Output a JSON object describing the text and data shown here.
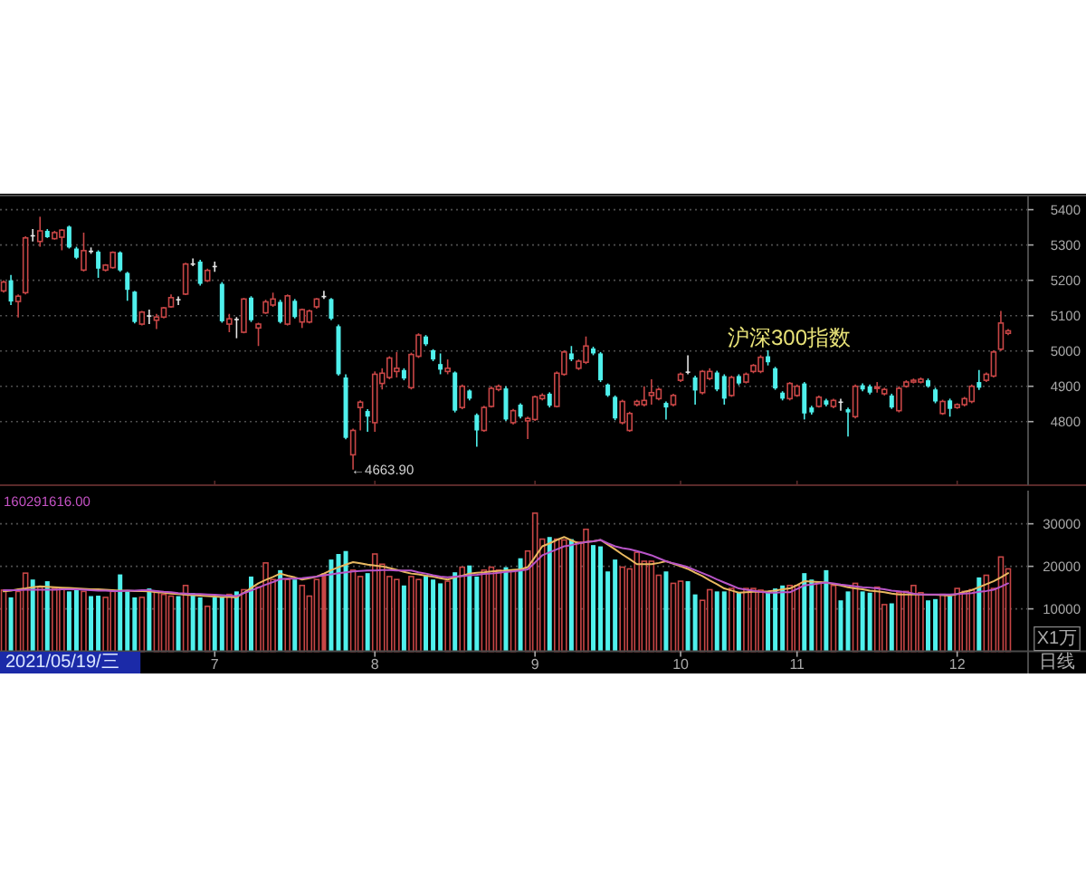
{
  "chart_data": [
    {
      "type": "candlestick",
      "title": "沪深300指数",
      "categories": [
        null,
        null,
        null,
        null,
        null,
        null,
        null,
        null,
        null,
        null,
        null,
        null,
        null,
        null,
        null,
        null,
        null,
        null,
        null,
        null,
        null,
        null,
        null,
        null,
        null,
        null,
        null,
        null,
        null,
        "7",
        null,
        null,
        null,
        null,
        null,
        null,
        null,
        null,
        null,
        null,
        null,
        null,
        null,
        null,
        null,
        null,
        null,
        null,
        null,
        null,
        null,
        "8",
        null,
        null,
        null,
        null,
        null,
        null,
        null,
        null,
        null,
        null,
        null,
        null,
        null,
        null,
        null,
        null,
        null,
        null,
        null,
        null,
        null,
        "9",
        null,
        null,
        null,
        null,
        null,
        null,
        null,
        null,
        null,
        null,
        null,
        null,
        null,
        null,
        null,
        null,
        null,
        null,
        null,
        "10",
        null,
        null,
        null,
        null,
        null,
        null,
        null,
        null,
        null,
        null,
        null,
        null,
        null,
        null,
        null,
        "11",
        null,
        null,
        null,
        null,
        null,
        null,
        null,
        null,
        null,
        null,
        null,
        null,
        null,
        null,
        null,
        null,
        null,
        null,
        null,
        null,
        null,
        "12",
        null,
        null,
        null,
        null,
        null,
        null,
        null
      ],
      "ohlc": [
        [
          5170,
          5200,
          5165,
          5195
        ],
        [
          5200,
          5215,
          5130,
          5140
        ],
        [
          5140,
          5160,
          5095,
          5155
        ],
        [
          5165,
          5325,
          5160,
          5320
        ],
        [
          5328,
          5345,
          5310,
          5328
        ],
        [
          5310,
          5380,
          5295,
          5340
        ],
        [
          5340,
          5345,
          5320,
          5322
        ],
        [
          5318,
          5340,
          5315,
          5335
        ],
        [
          5322,
          5345,
          5285,
          5342
        ],
        [
          5352,
          5355,
          5290,
          5293
        ],
        [
          5290,
          5295,
          5260,
          5264
        ],
        [
          5229,
          5335,
          5225,
          5284
        ],
        [
          5284,
          5293,
          5275,
          5284
        ],
        [
          5281,
          5285,
          5207,
          5233
        ],
        [
          5229,
          5246,
          5225,
          5243
        ],
        [
          5236,
          5282,
          5233,
          5279
        ],
        [
          5279,
          5282,
          5224,
          5228
        ],
        [
          5221,
          5224,
          5142,
          5173
        ],
        [
          5168,
          5170,
          5078,
          5082
        ],
        [
          5076,
          5113,
          5072,
          5110
        ],
        [
          5101,
          5117,
          5076,
          5101
        ],
        [
          5087,
          5105,
          5062,
          5096
        ],
        [
          5096,
          5125,
          5092,
          5122
        ],
        [
          5125,
          5160,
          5122,
          5151
        ],
        [
          5147,
          5154,
          5130,
          5147
        ],
        [
          5161,
          5250,
          5158,
          5246
        ],
        [
          5248,
          5262,
          5240,
          5248
        ],
        [
          5253,
          5258,
          5185,
          5190
        ],
        [
          5199,
          5233,
          5195,
          5228
        ],
        [
          5241,
          5253,
          5224,
          5241
        ],
        [
          5190,
          5195,
          5080,
          5084
        ],
        [
          5076,
          5105,
          5053,
          5091
        ],
        [
          5091,
          5096,
          5036,
          5091
        ],
        [
          5053,
          5150,
          5050,
          5147
        ],
        [
          5151,
          5155,
          5082,
          5087
        ],
        [
          5065,
          5080,
          5014,
          5076
        ],
        [
          5108,
          5145,
          5105,
          5139
        ],
        [
          5130,
          5165,
          5125,
          5147
        ],
        [
          5139,
          5145,
          5078,
          5082
        ],
        [
          5076,
          5160,
          5072,
          5156
        ],
        [
          5142,
          5147,
          5092,
          5096
        ],
        [
          5082,
          5120,
          5065,
          5117
        ],
        [
          5082,
          5117,
          5078,
          5113
        ],
        [
          5125,
          5150,
          5120,
          5147
        ],
        [
          5156,
          5170,
          5147,
          5156
        ],
        [
          5147,
          5150,
          5087,
          5091
        ],
        [
          5070,
          5075,
          4930,
          4934
        ],
        [
          4925,
          4934,
          4750,
          4754
        ],
        [
          4706,
          4780,
          4663.9,
          4775
        ],
        [
          4840,
          4860,
          4775,
          4855
        ],
        [
          4830,
          4835,
          4771,
          4814
        ],
        [
          4797,
          4942,
          4771,
          4934
        ],
        [
          4908,
          4951,
          4891,
          4937
        ],
        [
          4925,
          4985,
          4920,
          4980
        ],
        [
          4942,
          4997,
          4925,
          4951
        ],
        [
          4946,
          4951,
          4917,
          4922
        ],
        [
          4896,
          4995,
          4891,
          4990
        ],
        [
          4985,
          5050,
          4980,
          5045
        ],
        [
          5041,
          5045,
          5014,
          5019
        ],
        [
          5002,
          5005,
          4971,
          4976
        ],
        [
          4963,
          4993,
          4934,
          4947
        ],
        [
          4942,
          4976,
          4934,
          4951
        ],
        [
          4939,
          4942,
          4826,
          4831
        ],
        [
          4840,
          4905,
          4835,
          4900
        ],
        [
          4888,
          4891,
          4860,
          4865
        ],
        [
          4819,
          4823,
          4729,
          4775
        ],
        [
          4775,
          4845,
          4771,
          4840
        ],
        [
          4843,
          4900,
          4840,
          4894
        ],
        [
          4891,
          4905,
          4886,
          4900
        ],
        [
          4894,
          4900,
          4802,
          4806
        ],
        [
          4797,
          4836,
          4792,
          4831
        ],
        [
          4848,
          4852,
          4809,
          4814
        ],
        [
          4802,
          4814,
          4751,
          4809
        ],
        [
          4806,
          4874,
          4802,
          4870
        ],
        [
          4865,
          4880,
          4860,
          4874
        ],
        [
          4879,
          4883,
          4840,
          4845
        ],
        [
          4843,
          4942,
          4840,
          4937
        ],
        [
          4934,
          5002,
          4930,
          4997
        ],
        [
          4993,
          5014,
          4971,
          4976
        ],
        [
          4951,
          4976,
          4946,
          4971
        ],
        [
          4968,
          5041,
          4963,
          5014
        ],
        [
          5007,
          5012,
          4988,
          4993
        ],
        [
          4993,
          4997,
          4912,
          4917
        ],
        [
          4905,
          4908,
          4870,
          4874
        ],
        [
          4870,
          4874,
          4804,
          4809
        ],
        [
          4797,
          4862,
          4792,
          4857
        ],
        [
          4775,
          4828,
          4771,
          4823
        ],
        [
          4848,
          4862,
          4843,
          4857
        ],
        [
          4848,
          4900,
          4843,
          4860
        ],
        [
          4874,
          4920,
          4848,
          4882
        ],
        [
          4865,
          4896,
          4860,
          4891
        ],
        [
          4853,
          4857,
          4806,
          4840
        ],
        [
          4848,
          4879,
          4843,
          4874
        ],
        [
          4917,
          4939,
          4912,
          4934
        ],
        [
          4942,
          4988,
          4934,
          4942
        ],
        [
          4925,
          4930,
          4848,
          4888
        ],
        [
          4882,
          4946,
          4877,
          4942
        ],
        [
          4922,
          4951,
          4917,
          4942
        ],
        [
          4939,
          4944,
          4886,
          4891
        ],
        [
          4929,
          4934,
          4848,
          4865
        ],
        [
          4874,
          4930,
          4870,
          4925
        ],
        [
          4929,
          4934,
          4903,
          4908
        ],
        [
          4912,
          4939,
          4908,
          4934
        ],
        [
          4942,
          4963,
          4937,
          4959
        ],
        [
          4942,
          4988,
          4937,
          4982
        ],
        [
          4985,
          5002,
          4959,
          4968
        ],
        [
          4951,
          4955,
          4890,
          4894
        ],
        [
          4882,
          4886,
          4860,
          4865
        ],
        [
          4865,
          4912,
          4860,
          4908
        ],
        [
          4874,
          4905,
          4870,
          4900
        ],
        [
          4908,
          4912,
          4806,
          4823
        ],
        [
          4840,
          4845,
          4820,
          4826
        ],
        [
          4843,
          4874,
          4840,
          4869
        ],
        [
          4860,
          4865,
          4843,
          4848
        ],
        [
          4843,
          4865,
          4838,
          4860
        ],
        [
          4857,
          4865,
          4831,
          4857
        ],
        [
          4835,
          4840,
          4758,
          4826
        ],
        [
          4814,
          4905,
          4809,
          4900
        ],
        [
          4903,
          4908,
          4886,
          4891
        ],
        [
          4900,
          4905,
          4877,
          4882
        ],
        [
          4894,
          4912,
          4882,
          4898
        ],
        [
          4879,
          4896,
          4874,
          4891
        ],
        [
          4874,
          4879,
          4836,
          4840
        ],
        [
          4831,
          4900,
          4826,
          4894
        ],
        [
          4900,
          4917,
          4896,
          4912
        ],
        [
          4912,
          4922,
          4908,
          4917
        ],
        [
          4912,
          4925,
          4908,
          4920
        ],
        [
          4917,
          4922,
          4896,
          4900
        ],
        [
          4891,
          4896,
          4852,
          4857
        ],
        [
          4823,
          4862,
          4819,
          4857
        ],
        [
          4860,
          4865,
          4814,
          4836
        ],
        [
          4840,
          4852,
          4836,
          4848
        ],
        [
          4848,
          4870,
          4843,
          4865
        ],
        [
          4857,
          4905,
          4852,
          4900
        ],
        [
          4912,
          4946,
          4890,
          4896
        ],
        [
          4917,
          4939,
          4912,
          4934
        ],
        [
          4929,
          5002,
          4925,
          4997
        ],
        [
          5005,
          5113,
          5000,
          5079
        ],
        [
          5050,
          5062,
          5045,
          5057
        ]
      ],
      "colors": [
        "#c84646",
        "#4ff0ec",
        "#c84646",
        "#c84646",
        "#e6e6e6",
        "#c84646",
        "#4ff0ec",
        "#c84646",
        "#c84646",
        "#4ff0ec",
        "#4ff0ec",
        "#c84646",
        "#e6e6e6",
        "#4ff0ec",
        "#c84646",
        "#c84646",
        "#4ff0ec",
        "#4ff0ec",
        "#4ff0ec",
        "#c84646",
        "#e6e6e6",
        "#c84646",
        "#c84646",
        "#c84646",
        "#e6e6e6",
        "#c84646",
        "#e6e6e6",
        "#4ff0ec",
        "#c84646",
        "#e6e6e6",
        "#4ff0ec",
        "#c84646",
        "#e6e6e6",
        "#c84646",
        "#4ff0ec",
        "#c84646",
        "#c84646",
        "#c84646",
        "#4ff0ec",
        "#c84646",
        "#4ff0ec",
        "#c84646",
        "#c84646",
        "#c84646",
        "#e6e6e6",
        "#4ff0ec",
        "#4ff0ec",
        "#4ff0ec",
        "#c84646",
        "#c84646",
        "#4ff0ec",
        "#c84646",
        "#c84646",
        "#c84646",
        "#c84646",
        "#4ff0ec",
        "#c84646",
        "#c84646",
        "#4ff0ec",
        "#4ff0ec",
        "#4ff0ec",
        "#c84646",
        "#4ff0ec",
        "#c84646",
        "#4ff0ec",
        "#4ff0ec",
        "#c84646",
        "#c84646",
        "#c84646",
        "#4ff0ec",
        "#c84646",
        "#4ff0ec",
        "#c84646",
        "#c84646",
        "#c84646",
        "#4ff0ec",
        "#c84646",
        "#c84646",
        "#4ff0ec",
        "#c84646",
        "#c84646",
        "#4ff0ec",
        "#4ff0ec",
        "#4ff0ec",
        "#4ff0ec",
        "#c84646",
        "#c84646",
        "#c84646",
        "#c84646",
        "#c84646",
        "#c84646",
        "#4ff0ec",
        "#c84646",
        "#c84646",
        "#e6e6e6",
        "#4ff0ec",
        "#c84646",
        "#c84646",
        "#4ff0ec",
        "#4ff0ec",
        "#c84646",
        "#4ff0ec",
        "#c84646",
        "#c84646",
        "#c84646",
        "#4ff0ec",
        "#4ff0ec",
        "#4ff0ec",
        "#c84646",
        "#c84646",
        "#4ff0ec",
        "#4ff0ec",
        "#c84646",
        "#4ff0ec",
        "#c84646",
        "#e6e6e6",
        "#4ff0ec",
        "#c84646",
        "#4ff0ec",
        "#4ff0ec",
        "#c84646",
        "#c84646",
        "#4ff0ec",
        "#c84646",
        "#c84646",
        "#c84646",
        "#c84646",
        "#4ff0ec",
        "#4ff0ec",
        "#c84646",
        "#4ff0ec",
        "#c84646",
        "#c84646",
        "#c84646",
        "#4ff0ec",
        "#c84646",
        "#c84646",
        "#c84646",
        "#c84646"
      ],
      "ylim": [
        4620,
        5440
      ],
      "yticks": [
        4800,
        4900,
        5000,
        5100,
        5200,
        5300,
        5400
      ],
      "grid": "y",
      "tick_labels": "y",
      "annotations": [
        "←4663.90"
      ]
    },
    {
      "type": "bar",
      "ylabel": "X1万",
      "categories": [
        null,
        null,
        null,
        null,
        null,
        null,
        null,
        null,
        null,
        null,
        null,
        null,
        null,
        null,
        null,
        null,
        null,
        null,
        null,
        null,
        null,
        null,
        null,
        null,
        null,
        null,
        null,
        null,
        null,
        "7",
        null,
        null,
        null,
        null,
        null,
        null,
        null,
        null,
        null,
        null,
        null,
        null,
        null,
        null,
        null,
        null,
        null,
        null,
        null,
        null,
        null,
        "8",
        null,
        null,
        null,
        null,
        null,
        null,
        null,
        null,
        null,
        null,
        null,
        null,
        null,
        null,
        null,
        null,
        null,
        null,
        null,
        null,
        null,
        "9",
        null,
        null,
        null,
        null,
        null,
        null,
        null,
        null,
        null,
        null,
        null,
        null,
        null,
        null,
        null,
        null,
        null,
        null,
        null,
        "10",
        null,
        null,
        null,
        null,
        null,
        null,
        null,
        null,
        null,
        null,
        null,
        null,
        null,
        null,
        null,
        "11",
        null,
        null,
        null,
        null,
        null,
        null,
        null,
        null,
        null,
        null,
        null,
        null,
        null,
        null,
        null,
        null,
        null,
        null,
        null,
        null,
        null,
        "12",
        null,
        null,
        null,
        null,
        null,
        null,
        null
      ],
      "series": [
        {
          "type": "bar",
          "values": [
            14400,
            12700,
            14100,
            18400,
            16900,
            15100,
            16500,
            14800,
            14800,
            14100,
            14500,
            14100,
            13000,
            13100,
            12700,
            14100,
            18100,
            14100,
            12700,
            12700,
            14800,
            14100,
            13400,
            13000,
            13000,
            15500,
            13700,
            12700,
            10600,
            12700,
            12700,
            13400,
            14100,
            14500,
            17600,
            15100,
            20800,
            16900,
            19100,
            16900,
            16900,
            15500,
            13000,
            16900,
            18400,
            21600,
            22900,
            23600,
            19100,
            17600,
            18400,
            22900,
            20500,
            17600,
            16900,
            15500,
            17600,
            16900,
            17900,
            16900,
            16000,
            16500,
            18600,
            19800,
            20200,
            17600,
            19100,
            19800,
            19100,
            19800,
            19100,
            21900,
            23600,
            32500,
            26400,
            26900,
            26400,
            26200,
            26400,
            25700,
            28700,
            25000,
            24700,
            18800,
            21600,
            19800,
            19400,
            23300,
            21200,
            21200,
            17900,
            18800,
            16000,
            16500,
            16500,
            13400,
            12000,
            14500,
            14100,
            14100,
            14800,
            13800,
            14800,
            14800,
            14400,
            14100,
            14800,
            15500,
            15500,
            15500,
            18400,
            16900,
            16200,
            19100,
            15500,
            12000,
            14100,
            16000,
            14100,
            13800,
            15100,
            11000,
            11300,
            13800,
            14100,
            15500,
            13800,
            12000,
            12300,
            13400,
            13000,
            14800,
            14100,
            14500,
            17400,
            17900,
            14800,
            22200,
            19400
          ],
          "colors": [
            "#c84646",
            "#4ff0ec",
            "#c84646",
            "#c84646",
            "#4ff0ec",
            "#c84646",
            "#4ff0ec",
            "#c84646",
            "#c84646",
            "#4ff0ec",
            "#4ff0ec",
            "#c84646",
            "#4ff0ec",
            "#4ff0ec",
            "#c84646",
            "#c84646",
            "#4ff0ec",
            "#4ff0ec",
            "#4ff0ec",
            "#c84646",
            "#4ff0ec",
            "#c84646",
            "#c84646",
            "#c84646",
            "#4ff0ec",
            "#c84646",
            "#4ff0ec",
            "#4ff0ec",
            "#c84646",
            "#4ff0ec",
            "#4ff0ec",
            "#c84646",
            "#4ff0ec",
            "#c84646",
            "#4ff0ec",
            "#c84646",
            "#c84646",
            "#c84646",
            "#4ff0ec",
            "#c84646",
            "#4ff0ec",
            "#c84646",
            "#c84646",
            "#c84646",
            "#c84646",
            "#4ff0ec",
            "#4ff0ec",
            "#4ff0ec",
            "#c84646",
            "#c84646",
            "#4ff0ec",
            "#c84646",
            "#c84646",
            "#c84646",
            "#c84646",
            "#4ff0ec",
            "#c84646",
            "#c84646",
            "#4ff0ec",
            "#4ff0ec",
            "#4ff0ec",
            "#c84646",
            "#4ff0ec",
            "#c84646",
            "#4ff0ec",
            "#4ff0ec",
            "#c84646",
            "#c84646",
            "#c84646",
            "#4ff0ec",
            "#c84646",
            "#4ff0ec",
            "#c84646",
            "#c84646",
            "#c84646",
            "#4ff0ec",
            "#c84646",
            "#c84646",
            "#4ff0ec",
            "#c84646",
            "#c84646",
            "#4ff0ec",
            "#4ff0ec",
            "#4ff0ec",
            "#4ff0ec",
            "#c84646",
            "#c84646",
            "#c84646",
            "#c84646",
            "#c84646",
            "#c84646",
            "#4ff0ec",
            "#c84646",
            "#c84646",
            "#4ff0ec",
            "#4ff0ec",
            "#c84646",
            "#c84646",
            "#4ff0ec",
            "#4ff0ec",
            "#c84646",
            "#4ff0ec",
            "#c84646",
            "#c84646",
            "#c84646",
            "#4ff0ec",
            "#4ff0ec",
            "#4ff0ec",
            "#c84646",
            "#c84646",
            "#4ff0ec",
            "#4ff0ec",
            "#c84646",
            "#4ff0ec",
            "#c84646",
            "#4ff0ec",
            "#4ff0ec",
            "#c84646",
            "#4ff0ec",
            "#4ff0ec",
            "#c84646",
            "#c84646",
            "#4ff0ec",
            "#c84646",
            "#c84646",
            "#c84646",
            "#c84646",
            "#4ff0ec",
            "#4ff0ec",
            "#c84646",
            "#4ff0ec",
            "#c84646",
            "#c84646",
            "#c84646",
            "#4ff0ec",
            "#c84646",
            "#c84646",
            "#c84646",
            "#c84646"
          ]
        },
        {
          "type": "line",
          "color": "#e8b860",
          "values": [
            14100,
            14300,
            14600,
            14800,
            15100,
            15300,
            15200,
            15100,
            15000,
            14900,
            14800,
            14700,
            14600,
            14600,
            14500,
            14400,
            14300,
            14300,
            14200,
            14200,
            14100,
            13900,
            13800,
            13600,
            13500,
            13300,
            13200,
            13100,
            13000,
            12900,
            12800,
            12800,
            12700,
            13800,
            14900,
            16000,
            16800,
            17500,
            18300,
            17800,
            17400,
            16900,
            17200,
            17600,
            18300,
            19100,
            19800,
            20400,
            21000,
            20700,
            20400,
            20200,
            20000,
            19600,
            19200,
            18700,
            18300,
            18100,
            17800,
            17600,
            17200,
            16900,
            17400,
            17800,
            18300,
            18500,
            18600,
            18800,
            18900,
            19000,
            19200,
            19300,
            19800,
            22200,
            24700,
            25400,
            26200,
            26900,
            26100,
            25400,
            25700,
            25900,
            26200,
            25100,
            24000,
            22800,
            21700,
            20500,
            20500,
            20500,
            20800,
            21200,
            20600,
            20000,
            19400,
            18500,
            17700,
            16700,
            15800,
            14800,
            14300,
            13800,
            13900,
            14000,
            14000,
            14100,
            14300,
            14600,
            14800,
            15600,
            16500,
            16400,
            16300,
            16200,
            15800,
            15500,
            15100,
            14800,
            14600,
            14300,
            14100,
            13900,
            13600,
            13400,
            13400,
            13400,
            13400,
            13300,
            13300,
            13200,
            13100,
            13500,
            14000,
            14400,
            15100,
            15800,
            16500,
            17400,
            18400
          ]
        },
        {
          "type": "line",
          "color": "#b855c8",
          "values": [
            14400,
            14400,
            14400,
            14500,
            14500,
            14500,
            14500,
            14500,
            14600,
            14600,
            14600,
            14500,
            14400,
            14300,
            14300,
            14200,
            14200,
            14300,
            14300,
            14400,
            14400,
            14200,
            14000,
            13900,
            13700,
            13600,
            13500,
            13500,
            13400,
            13300,
            13200,
            13100,
            13000,
            13700,
            14300,
            15000,
            15700,
            16300,
            17000,
            17100,
            17100,
            17200,
            17400,
            17600,
            17900,
            18100,
            18400,
            18600,
            18800,
            18900,
            19000,
            19000,
            19100,
            19100,
            19000,
            19000,
            19000,
            18600,
            18300,
            17900,
            17600,
            17400,
            17600,
            17700,
            17900,
            18000,
            18200,
            18300,
            18500,
            18700,
            18800,
            19000,
            19300,
            20900,
            22600,
            23300,
            24000,
            24700,
            25000,
            25400,
            25700,
            25900,
            26200,
            25400,
            24700,
            24300,
            24000,
            23600,
            23100,
            22600,
            21900,
            21200,
            20700,
            20300,
            19800,
            19100,
            18400,
            17700,
            16900,
            16200,
            15500,
            14800,
            14500,
            14300,
            14000,
            13800,
            13800,
            13900,
            13900,
            14700,
            15500,
            15700,
            16000,
            16200,
            16000,
            15700,
            15500,
            15300,
            15100,
            15000,
            14800,
            14600,
            14300,
            14100,
            13900,
            13600,
            13400,
            13400,
            13400,
            13400,
            13400,
            13500,
            13600,
            13700,
            14000,
            14200,
            14500,
            15200,
            16000
          ]
        }
      ],
      "ylim": [
        0,
        37800
      ],
      "yticks": [
        10000,
        20000,
        30000
      ],
      "grid": "y",
      "annotations": [
        "160291616.00",
        "2021/05/19/三",
        "日线"
      ]
    }
  ]
}
